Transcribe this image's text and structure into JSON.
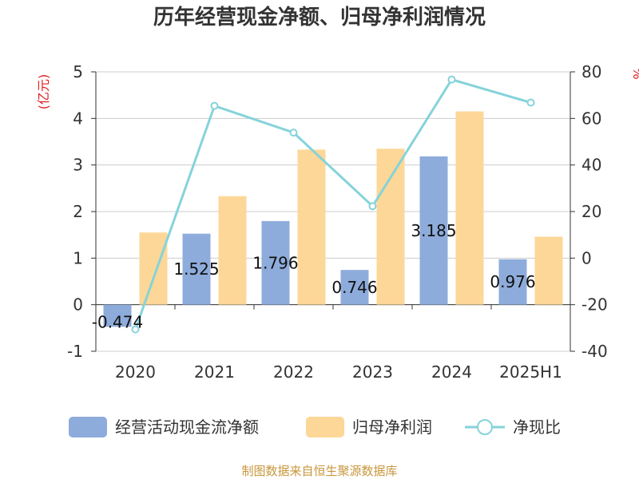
{
  "chart_data": {
    "type": "bar",
    "title": "历年经营现金净额、归母净利润情况",
    "categories": [
      "2020",
      "2021",
      "2022",
      "2023",
      "2024",
      "2025H1"
    ],
    "series": [
      {
        "name": "经营活动现金流净额",
        "type": "bar",
        "axis": "left",
        "color": "#8eacdb",
        "values": [
          -0.474,
          1.525,
          1.796,
          0.746,
          3.185,
          0.976
        ]
      },
      {
        "name": "归母净利润",
        "type": "bar",
        "axis": "left",
        "color": "#fdd797",
        "values": [
          1.55,
          2.33,
          3.33,
          3.35,
          4.15,
          1.46
        ]
      },
      {
        "name": "净现比",
        "type": "line",
        "axis": "right",
        "color": "#85d3da",
        "values": [
          -30.6,
          65.4,
          53.9,
          22.3,
          76.7,
          66.8
        ]
      }
    ],
    "data_labels": [
      "-0.474",
      "1.525",
      "1.796",
      "0.746",
      "3.185",
      "0.976"
    ],
    "y_left": {
      "label": "(亿元)",
      "ticks": [
        "-1",
        "0",
        "1",
        "2",
        "3",
        "4",
        "5"
      ],
      "min": -1,
      "max": 5
    },
    "y_right": {
      "label": "%",
      "ticks": [
        "-40",
        "-20",
        "0",
        "20",
        "40",
        "60",
        "80"
      ],
      "min": -40,
      "max": 80
    },
    "grid": true,
    "legend_position": "bottom",
    "source": "制图数据来自恒生聚源数据库"
  }
}
